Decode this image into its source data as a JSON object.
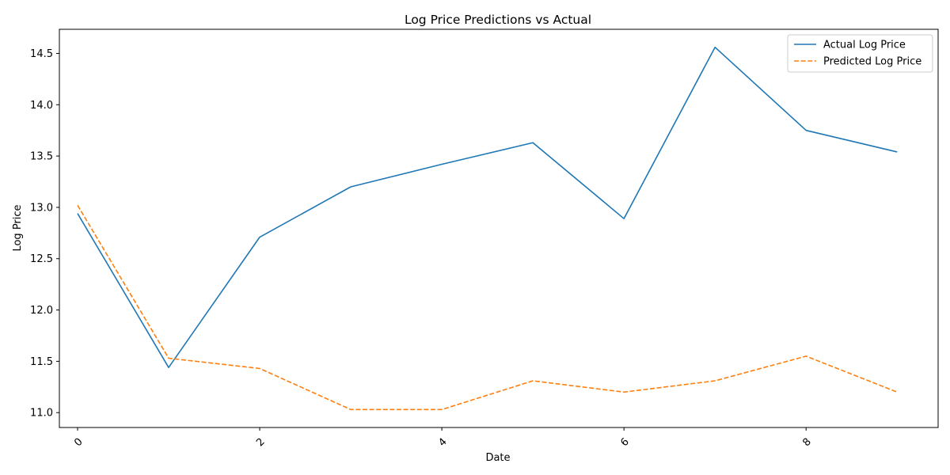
{
  "chart_data": {
    "type": "line",
    "title": "Log Price Predictions vs Actual",
    "xlabel": "Date",
    "ylabel": "Log Price",
    "x": [
      0,
      1,
      2,
      3,
      4,
      5,
      6,
      7,
      8,
      9
    ],
    "xlim": [
      -0.2,
      9.45
    ],
    "ylim": [
      10.855,
      14.735
    ],
    "xticks": [
      0,
      2,
      4,
      6,
      8
    ],
    "xtick_labels": [
      "0",
      "2",
      "4",
      "6",
      "8"
    ],
    "xtick_rotation": 45,
    "yticks": [
      11.0,
      11.5,
      12.0,
      12.5,
      13.0,
      13.5,
      14.0,
      14.5
    ],
    "ytick_labels": [
      "11.0",
      "11.5",
      "12.0",
      "12.5",
      "13.0",
      "13.5",
      "14.0",
      "14.5"
    ],
    "grid": false,
    "legend_position": "top-right",
    "series": [
      {
        "name": "Actual Log Price",
        "color": "#1f77b4",
        "style": "solid",
        "values": [
          12.94,
          11.44,
          12.71,
          13.2,
          13.42,
          13.63,
          12.89,
          14.56,
          13.75,
          13.54
        ]
      },
      {
        "name": "Predicted Log Price",
        "color": "#ff7f0e",
        "style": "dashed",
        "values": [
          13.02,
          11.53,
          11.43,
          11.03,
          11.03,
          11.31,
          11.2,
          11.31,
          11.55,
          11.2
        ]
      }
    ]
  }
}
